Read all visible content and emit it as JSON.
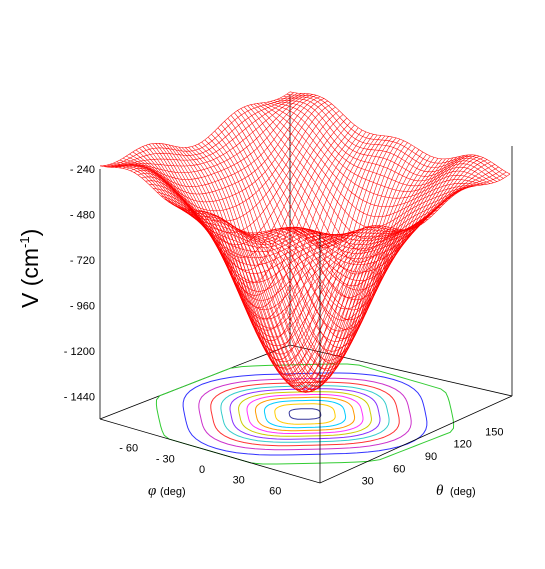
{
  "chart_data": {
    "type": "surface3d",
    "title": "",
    "zlabel": {
      "prefix": "V (cm",
      "sup": "-1",
      "suffix": ")"
    },
    "zticks": [
      "- 240",
      "- 480",
      "- 720",
      "- 960",
      "- 1200",
      "- 1440"
    ],
    "zvalues": [
      -240,
      -480,
      -720,
      -960,
      -1200,
      -1440
    ],
    "zlim": [
      -1560,
      -240
    ],
    "phi": {
      "label": "φ",
      "unit": "(deg)",
      "ticks": [
        "- 60",
        "- 30",
        "0",
        "30",
        "60"
      ],
      "values": [
        -60,
        -30,
        0,
        30,
        60
      ],
      "range": [
        -90,
        90
      ]
    },
    "theta": {
      "label": "θ",
      "unit": "(deg)",
      "ticks": [
        "30",
        "60",
        "90",
        "120",
        "150"
      ],
      "values": [
        30,
        60,
        90,
        120,
        150
      ],
      "range": [
        0,
        180
      ]
    },
    "surface": {
      "color": "#ff0000",
      "minimum": {
        "phi": 0,
        "theta": 90,
        "V": -1440
      },
      "edge_V": -240,
      "style": "wireframe"
    },
    "contours": {
      "projected_on": "floor",
      "levels": [
        -300,
        -400,
        -500,
        -600,
        -700,
        -800,
        -900,
        -1000,
        -1100,
        -1200,
        -1300,
        -1400
      ],
      "colors": [
        "#33cc33",
        "#3333ff",
        "#cc33cc",
        "#ff3333",
        "#33cccc",
        "#8833ff",
        "#cccc00",
        "#ff33ff",
        "#ff9900",
        "#00ccff",
        "#ffcc00",
        "#333399"
      ]
    }
  }
}
